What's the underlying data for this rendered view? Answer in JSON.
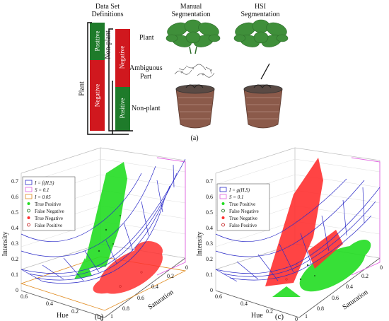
{
  "figure_a": {
    "defs_title_line1": "Data Set",
    "defs_title_line2": "Definitions",
    "bar_plant": {
      "positive_label": "Positive",
      "negative_label": "Negative",
      "group_label": "Plant"
    },
    "bar_nonplant": {
      "negative_label": "Negative",
      "positive_label": "Positive",
      "group_label": "Non-plant"
    },
    "row_labels": [
      "Plant",
      "Ambiguous Part",
      "Non-plant"
    ],
    "col_manual_line1": "Manual",
    "col_manual_line2": "Segmentation",
    "col_hsi_line1": "HSI",
    "col_hsi_line2": "Segmentation",
    "caption": "(a)",
    "colors": {
      "positive": "#1e7b2a",
      "negative": "#d0181e",
      "plant": "#3f8f3a",
      "pot": "#7a4a3a"
    }
  },
  "figure_b": {
    "caption": "(b)",
    "zlabel": "Intensity",
    "xlabel": "Hue",
    "ylabel": "Saturation",
    "z_ticks": [
      "0.7",
      "0.6",
      "0.5",
      "0.4",
      "0.3",
      "0.2",
      "0.1",
      "0"
    ],
    "hue_ticks": [
      "0.6",
      "0.4",
      "0.2",
      "0"
    ],
    "sat_ticks": [
      "1",
      "0.8",
      "0.6",
      "0.4",
      "0.2",
      "0"
    ],
    "legend": [
      {
        "label": "I = f(H,S)",
        "marker": "rect",
        "color": "#2b2bc8"
      },
      {
        "label": "S = 0.1",
        "marker": "rect",
        "color": "#e060e0"
      },
      {
        "label": "I = 0.05",
        "marker": "rect",
        "color": "#e08a1e"
      },
      {
        "label": "True Positive",
        "marker": "dot",
        "color": "#22dd22"
      },
      {
        "label": "False Negative",
        "marker": "ring",
        "color": "#1a6a1a"
      },
      {
        "label": "True Negative",
        "marker": "dot",
        "color": "#ff3030"
      },
      {
        "label": "False Positive",
        "marker": "ring",
        "color": "#c01818"
      }
    ]
  },
  "figure_c": {
    "caption": "(c)",
    "zlabel": "Intensity",
    "xlabel": "Hue",
    "ylabel": "Saturation",
    "z_ticks": [
      "0.7",
      "0.6",
      "0.5",
      "0.4",
      "0.3",
      "0.2",
      "0.1",
      "0"
    ],
    "hue_ticks": [
      "0.6",
      "0.4",
      "0.2",
      "0"
    ],
    "sat_ticks": [
      "1",
      "0.8",
      "0.6",
      "0.4",
      "0.2",
      "0"
    ],
    "legend": [
      {
        "label": "I = g(H,S)",
        "marker": "rect",
        "color": "#2b2bc8"
      },
      {
        "label": "S = 0.1",
        "marker": "rect",
        "color": "#e060e0"
      },
      {
        "label": "True Positive",
        "marker": "dot",
        "color": "#22dd22"
      },
      {
        "label": "False Negative",
        "marker": "ring",
        "color": "#1a6a1a"
      },
      {
        "label": "True Negative",
        "marker": "dot",
        "color": "#ff3030"
      },
      {
        "label": "False Positive",
        "marker": "ring",
        "color": "#c01818"
      }
    ]
  }
}
